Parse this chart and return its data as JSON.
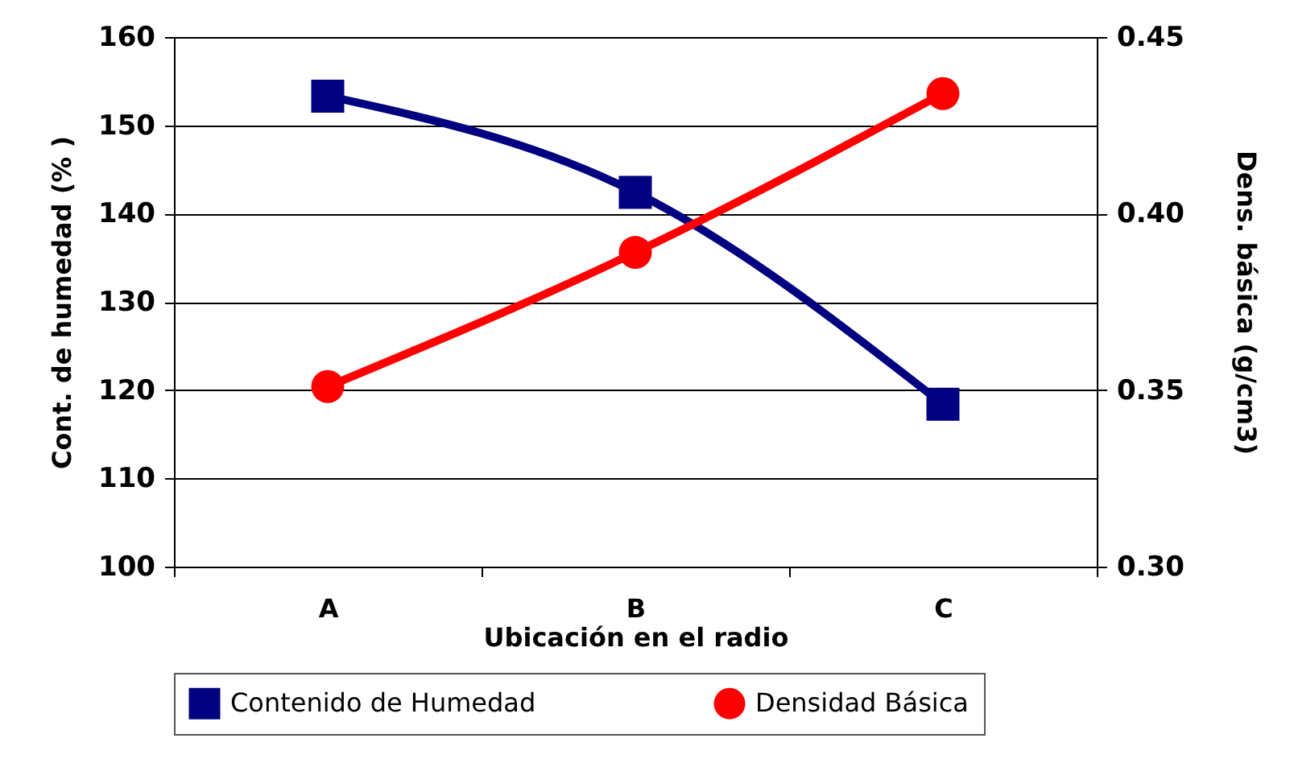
{
  "chart_data": {
    "type": "line",
    "xlabel": "Ubicación en el radio",
    "ylabel": "Cont. de humedad (% )",
    "y2label": "Dens. básica (g/cm3)",
    "categories": [
      "A",
      "B",
      "C"
    ],
    "series": [
      {
        "name": "Contenido de Humedad",
        "color": "#000080",
        "values": [
          153.3,
          142.4,
          118.4
        ],
        "marker": "square"
      },
      {
        "name": "Densidad Básica",
        "color": "#ff0000",
        "values": [
          0.351,
          0.389,
          0.434
        ],
        "marker": "circle",
        "axis": "y2"
      }
    ],
    "ylim": [
      100,
      160
    ],
    "yticks": [
      100,
      110,
      120,
      130,
      140,
      150,
      160
    ],
    "y2lim": [
      0.3,
      0.45
    ],
    "y2ticks": [
      {
        "value": 0.3,
        "label": "0.30"
      },
      0.35,
      {
        "value": 0.4,
        "label": "0.40"
      },
      0.45
    ],
    "grid": "y",
    "legend": "bottom"
  }
}
